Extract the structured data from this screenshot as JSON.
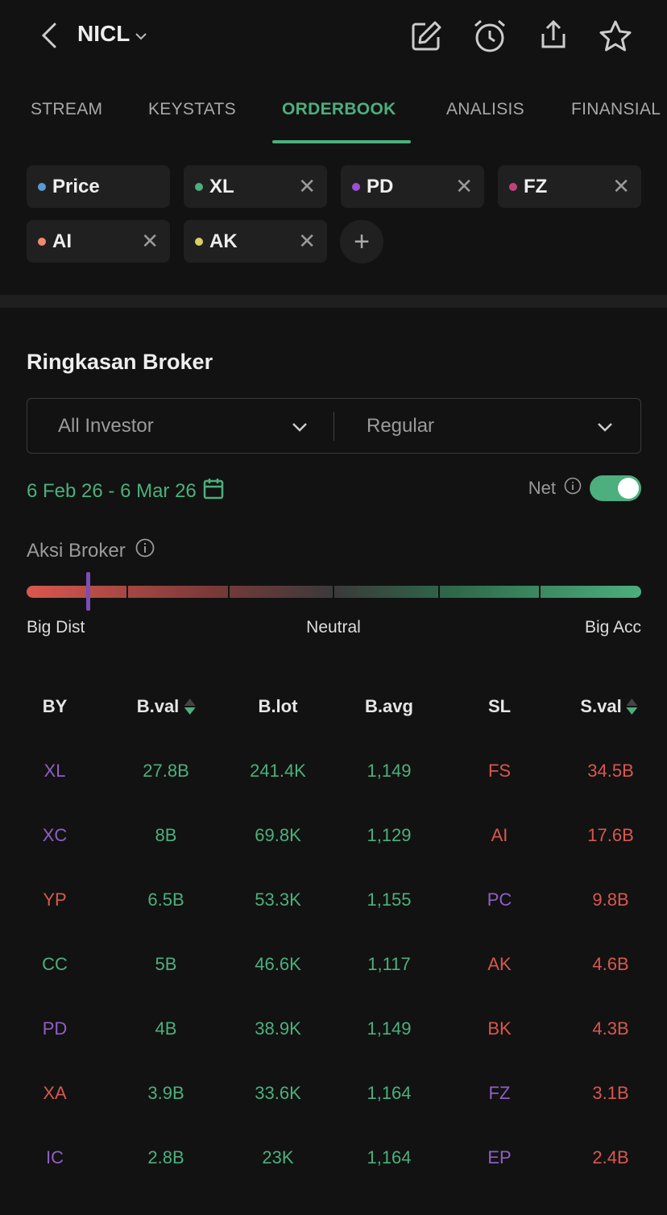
{
  "header": {
    "ticker": "NICL",
    "icons": [
      "back-icon",
      "edit-icon",
      "alarm-icon",
      "share-icon",
      "star-icon"
    ]
  },
  "tabs": [
    {
      "label": "STREAM"
    },
    {
      "label": "KEYSTATS"
    },
    {
      "label": "ORDERBOOK",
      "active": true
    },
    {
      "label": "ANALISIS"
    },
    {
      "label": "FINANSIAL"
    }
  ],
  "chips": [
    {
      "label": "Price",
      "color": "#5b9bd5",
      "removable": false
    },
    {
      "label": "XL",
      "color": "#4caf7d",
      "removable": true
    },
    {
      "label": "PD",
      "color": "#9b4fd6",
      "removable": true
    },
    {
      "label": "FZ",
      "color": "#c2417a",
      "removable": true
    },
    {
      "label": "AI",
      "color": "#f08a6e",
      "removable": true
    },
    {
      "label": "AK",
      "color": "#d9cf62",
      "removable": true
    }
  ],
  "summary": {
    "title": "Ringkasan Broker",
    "investor_select": "All Investor",
    "market_select": "Regular",
    "date_range": "6 Feb 26 - 6 Mar 26",
    "net_label": "Net",
    "net_enabled": true,
    "aksi_label": "Aksi Broker",
    "aksi_level": 0.1,
    "scale": {
      "left": "Big Dist",
      "center": "Neutral",
      "right": "Big Acc"
    }
  },
  "table": {
    "headers": [
      "BY",
      "B.val",
      "B.lot",
      "B.avg",
      "SL",
      "S.val"
    ],
    "colors": {
      "foreign": "#8f5fc4",
      "local": "#d9574f",
      "gov": "#4caf7d",
      "buy": "#4caf7d",
      "sell": "#d9574f"
    },
    "rows": [
      {
        "by": "XL",
        "by_type": "foreign",
        "bval": "27.8B",
        "blot": "241.4K",
        "bavg": "1,149",
        "sl": "FS",
        "sl_type": "local",
        "sval": "34.5B"
      },
      {
        "by": "XC",
        "by_type": "foreign",
        "bval": "8B",
        "blot": "69.8K",
        "bavg": "1,129",
        "sl": "AI",
        "sl_type": "local",
        "sval": "17.6B"
      },
      {
        "by": "YP",
        "by_type": "local",
        "bval": "6.5B",
        "blot": "53.3K",
        "bavg": "1,155",
        "sl": "PC",
        "sl_type": "foreign",
        "sval": "9.8B"
      },
      {
        "by": "CC",
        "by_type": "gov",
        "bval": "5B",
        "blot": "46.6K",
        "bavg": "1,117",
        "sl": "AK",
        "sl_type": "local",
        "sval": "4.6B"
      },
      {
        "by": "PD",
        "by_type": "foreign",
        "bval": "4B",
        "blot": "38.9K",
        "bavg": "1,149",
        "sl": "BK",
        "sl_type": "local",
        "sval": "4.3B"
      },
      {
        "by": "XA",
        "by_type": "local",
        "bval": "3.9B",
        "blot": "33.6K",
        "bavg": "1,164",
        "sl": "FZ",
        "sl_type": "foreign",
        "sval": "3.1B"
      },
      {
        "by": "IC",
        "by_type": "foreign",
        "bval": "2.8B",
        "blot": "23K",
        "bavg": "1,164",
        "sl": "EP",
        "sl_type": "foreign",
        "sval": "2.4B"
      }
    ]
  }
}
